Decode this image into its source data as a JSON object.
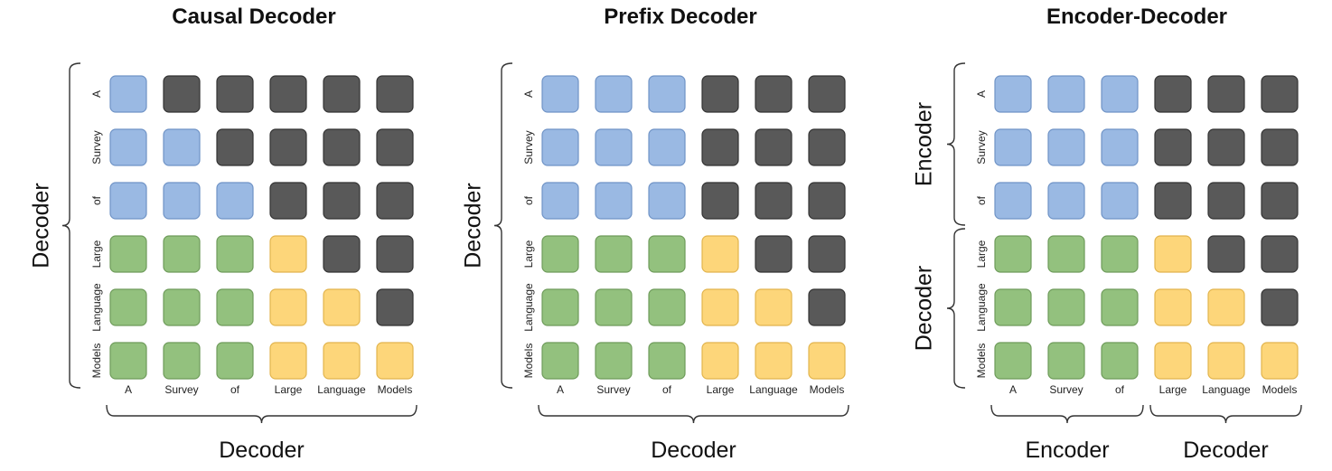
{
  "tokens": [
    "A",
    "Survey",
    "of",
    "Large",
    "Language",
    "Models"
  ],
  "colors": {
    "blue": "#9ab9e3",
    "blue_border": "#6f93c6",
    "dark": "#595959",
    "dark_border": "#333333",
    "green": "#93c17e",
    "green_border": "#6e9b5a",
    "yellow": "#fdd67a",
    "yellow_border": "#e2b44d"
  },
  "legend": {
    "B": "blue",
    "D": "dark",
    "G": "green",
    "Y": "yellow"
  },
  "panels": [
    {
      "title": "Causal Decoder",
      "row_groups": [
        "Decoder"
      ],
      "col_groups": [
        "Decoder"
      ],
      "matrix": [
        "BDDDDD",
        "BBDDDD",
        "BBBDDD",
        "GGGYDD",
        "GGGYYD",
        "GGGYYY"
      ]
    },
    {
      "title": "Prefix Decoder",
      "row_groups": [
        "Decoder"
      ],
      "col_groups": [
        "Decoder"
      ],
      "matrix": [
        "BBBDDD",
        "BBBDDD",
        "BBBDDD",
        "GGGYDD",
        "GGGYYD",
        "GGGYYY"
      ]
    },
    {
      "title": "Encoder-Decoder",
      "row_groups": [
        "Encoder",
        "Decoder"
      ],
      "col_groups": [
        "Encoder",
        "Decoder"
      ],
      "matrix": [
        "BBBDDD",
        "BBBDDD",
        "BBBDDD",
        "GGGYDD",
        "GGGYYD",
        "GGGYYY"
      ]
    }
  ]
}
